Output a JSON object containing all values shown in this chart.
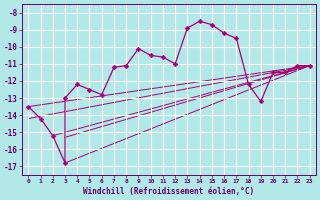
{
  "xlabel": "Windchill (Refroidissement éolien,°C)",
  "background_color": "#b2e8e8",
  "grid_color": "#c8e8e8",
  "line_color": "#aa0077",
  "markersize": 2.5,
  "xlim": [
    -0.5,
    23.5
  ],
  "ylim": [
    -17.5,
    -7.5
  ],
  "xticks": [
    0,
    1,
    2,
    3,
    4,
    5,
    6,
    7,
    8,
    9,
    10,
    11,
    12,
    13,
    14,
    15,
    16,
    17,
    18,
    19,
    20,
    21,
    22,
    23
  ],
  "yticks": [
    -17,
    -16,
    -15,
    -14,
    -13,
    -12,
    -11,
    -10,
    -9,
    -8
  ],
  "series": [
    [
      0,
      -13.5
    ],
    [
      1,
      -14.2
    ],
    [
      2,
      -15.2
    ],
    [
      3,
      -16.8
    ],
    [
      3,
      -13.0
    ],
    [
      4,
      -12.2
    ],
    [
      5,
      -12.5
    ],
    [
      6,
      -12.8
    ],
    [
      7,
      -11.2
    ],
    [
      8,
      -11.1
    ],
    [
      9,
      -10.1
    ],
    [
      10,
      -10.5
    ],
    [
      11,
      -10.6
    ],
    [
      12,
      -11.0
    ],
    [
      13,
      -8.9
    ],
    [
      14,
      -8.5
    ],
    [
      15,
      -8.7
    ],
    [
      16,
      -9.2
    ],
    [
      17,
      -9.5
    ],
    [
      18,
      -12.2
    ],
    [
      19,
      -13.2
    ],
    [
      20,
      -11.5
    ],
    [
      21,
      -11.5
    ],
    [
      22,
      -11.1
    ],
    [
      23,
      -11.1
    ]
  ],
  "fan_lines": [
    {
      "x": [
        0,
        23
      ],
      "y": [
        -13.5,
        -11.1
      ]
    },
    {
      "x": [
        0,
        23
      ],
      "y": [
        -14.2,
        -11.1
      ]
    },
    {
      "x": [
        2,
        23
      ],
      "y": [
        -15.2,
        -11.1
      ]
    },
    {
      "x": [
        3,
        23
      ],
      "y": [
        -15.3,
        -11.1
      ]
    },
    {
      "x": [
        3,
        23
      ],
      "y": [
        -16.8,
        -11.1
      ]
    }
  ]
}
